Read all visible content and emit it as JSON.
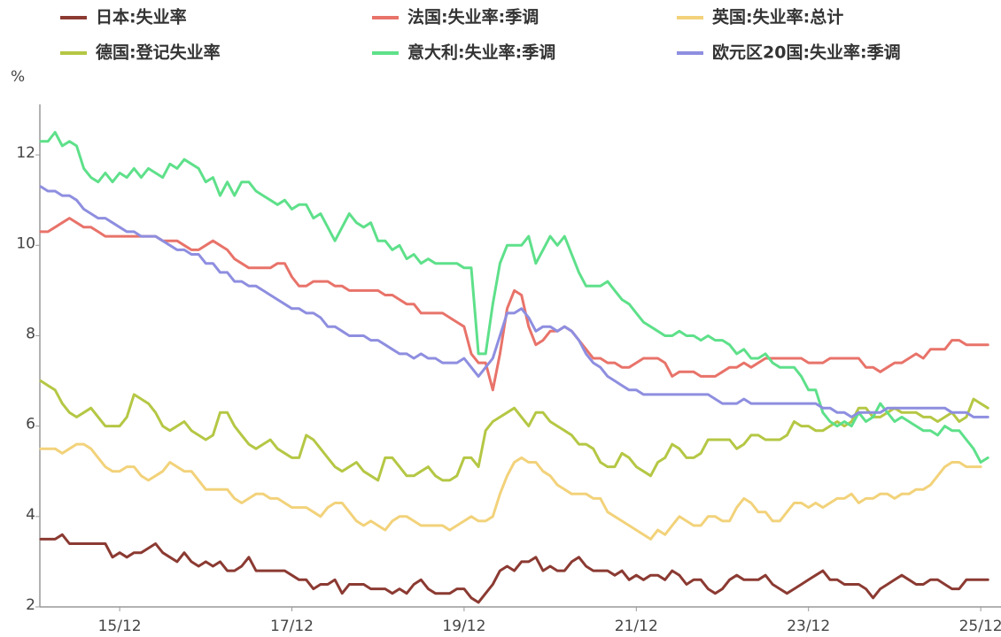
{
  "chart_data": {
    "type": "line",
    "y_label": "%",
    "categories": [
      null,
      null,
      null,
      null,
      null,
      null,
      null,
      null,
      null,
      null,
      null,
      "15/12",
      null,
      null,
      null,
      null,
      null,
      null,
      null,
      null,
      null,
      null,
      null,
      null,
      null,
      null,
      null,
      null,
      null,
      null,
      null,
      null,
      null,
      null,
      null,
      "17/12",
      null,
      null,
      null,
      null,
      null,
      null,
      null,
      null,
      null,
      null,
      null,
      null,
      null,
      null,
      null,
      null,
      null,
      null,
      null,
      null,
      null,
      null,
      null,
      "19/12",
      null,
      null,
      null,
      null,
      null,
      null,
      null,
      null,
      null,
      null,
      null,
      null,
      null,
      null,
      null,
      null,
      null,
      null,
      null,
      null,
      null,
      null,
      null,
      "21/12",
      null,
      null,
      null,
      null,
      null,
      null,
      null,
      null,
      null,
      null,
      null,
      null,
      null,
      null,
      null,
      null,
      null,
      null,
      null,
      null,
      null,
      null,
      null,
      "23/12",
      null,
      null,
      null,
      null,
      null,
      null,
      null,
      null,
      null,
      null,
      null,
      null,
      null,
      null,
      null,
      null,
      null,
      null,
      null,
      null,
      null,
      null,
      null,
      "25/12",
      null
    ],
    "ylim": [
      2,
      13
    ],
    "yticks": [
      2,
      4,
      6,
      8,
      10,
      12
    ],
    "series": [
      {
        "name": "日本:失业率",
        "color": "#8b3a32",
        "values": [
          3.5,
          3.5,
          3.5,
          3.6,
          3.4,
          3.4,
          3.4,
          3.4,
          3.4,
          3.4,
          3.1,
          3.2,
          3.1,
          3.2,
          3.2,
          3.3,
          3.4,
          3.2,
          3.1,
          3.0,
          3.2,
          3.0,
          2.9,
          3.0,
          2.9,
          3.0,
          2.8,
          2.8,
          2.9,
          3.1,
          2.8,
          2.8,
          2.8,
          2.8,
          2.8,
          2.7,
          2.6,
          2.6,
          2.4,
          2.5,
          2.5,
          2.6,
          2.3,
          2.5,
          2.5,
          2.5,
          2.4,
          2.4,
          2.4,
          2.3,
          2.4,
          2.3,
          2.5,
          2.6,
          2.4,
          2.3,
          2.3,
          2.3,
          2.4,
          2.4,
          2.2,
          2.1,
          2.3,
          2.5,
          2.8,
          2.9,
          2.8,
          3.0,
          3.0,
          3.1,
          2.8,
          2.9,
          2.8,
          2.8,
          3.0,
          3.1,
          2.9,
          2.8,
          2.8,
          2.8,
          2.7,
          2.8,
          2.6,
          2.7,
          2.6,
          2.7,
          2.7,
          2.6,
          2.8,
          2.7,
          2.5,
          2.6,
          2.6,
          2.4,
          2.3,
          2.4,
          2.6,
          2.7,
          2.6,
          2.6,
          2.6,
          2.7,
          2.5,
          2.4,
          2.3,
          2.4,
          2.5,
          2.6,
          2.7,
          2.8,
          2.6,
          2.6,
          2.5,
          2.5,
          2.5,
          2.4,
          2.2,
          2.4,
          2.5,
          2.6,
          2.7,
          2.6,
          2.5,
          2.5,
          2.6,
          2.6,
          2.5,
          2.4,
          2.4,
          2.6,
          2.6,
          2.6,
          2.6
        ]
      },
      {
        "name": "法国:失业率:季调",
        "color": "#e8736a",
        "values": [
          10.3,
          10.3,
          10.4,
          10.5,
          10.6,
          10.5,
          10.4,
          10.4,
          10.3,
          10.2,
          10.2,
          10.2,
          10.2,
          10.2,
          10.2,
          10.2,
          10.2,
          10.1,
          10.1,
          10.1,
          10.0,
          9.9,
          9.9,
          10.0,
          10.1,
          10.0,
          9.9,
          9.7,
          9.6,
          9.5,
          9.5,
          9.5,
          9.5,
          9.6,
          9.6,
          9.3,
          9.1,
          9.1,
          9.2,
          9.2,
          9.2,
          9.1,
          9.1,
          9.0,
          9.0,
          9.0,
          9.0,
          9.0,
          8.9,
          8.9,
          8.8,
          8.7,
          8.7,
          8.5,
          8.5,
          8.5,
          8.5,
          8.4,
          8.3,
          8.2,
          7.6,
          7.4,
          7.4,
          6.8,
          7.6,
          8.6,
          9.0,
          8.9,
          8.2,
          7.8,
          7.9,
          8.1,
          8.1,
          8.2,
          8.1,
          7.9,
          7.7,
          7.5,
          7.5,
          7.4,
          7.4,
          7.3,
          7.3,
          7.4,
          7.5,
          7.5,
          7.5,
          7.4,
          7.1,
          7.2,
          7.2,
          7.2,
          7.1,
          7.1,
          7.1,
          7.2,
          7.3,
          7.3,
          7.4,
          7.3,
          7.4,
          7.5,
          7.5,
          7.5,
          7.5,
          7.5,
          7.5,
          7.4,
          7.4,
          7.4,
          7.5,
          7.5,
          7.5,
          7.5,
          7.5,
          7.3,
          7.3,
          7.2,
          7.3,
          7.4,
          7.4,
          7.5,
          7.6,
          7.5,
          7.7,
          7.7,
          7.7,
          7.9,
          7.9,
          7.8,
          7.8,
          7.8,
          7.8
        ]
      },
      {
        "name": "英国:失业率:总计",
        "color": "#f2d27a",
        "values": [
          5.5,
          5.5,
          5.5,
          5.4,
          5.5,
          5.6,
          5.6,
          5.5,
          5.3,
          5.1,
          5.0,
          5.0,
          5.1,
          5.1,
          4.9,
          4.8,
          4.9,
          5.0,
          5.2,
          5.1,
          5.0,
          5.0,
          4.8,
          4.6,
          4.6,
          4.6,
          4.6,
          4.4,
          4.3,
          4.4,
          4.5,
          4.5,
          4.4,
          4.4,
          4.3,
          4.2,
          4.2,
          4.2,
          4.1,
          4.0,
          4.2,
          4.3,
          4.3,
          4.1,
          3.9,
          3.8,
          3.9,
          3.8,
          3.7,
          3.9,
          4.0,
          4.0,
          3.9,
          3.8,
          3.8,
          3.8,
          3.8,
          3.7,
          3.8,
          3.9,
          4.0,
          3.9,
          3.9,
          4.0,
          4.5,
          4.9,
          5.2,
          5.3,
          5.2,
          5.2,
          5.0,
          4.9,
          4.7,
          4.6,
          4.5,
          4.5,
          4.5,
          4.4,
          4.4,
          4.1,
          4.0,
          3.9,
          3.8,
          3.7,
          3.6,
          3.5,
          3.7,
          3.6,
          3.8,
          4.0,
          3.9,
          3.8,
          3.8,
          4.0,
          4.0,
          3.9,
          3.9,
          4.2,
          4.4,
          4.3,
          4.1,
          4.1,
          3.9,
          3.9,
          4.1,
          4.3,
          4.3,
          4.2,
          4.3,
          4.2,
          4.3,
          4.4,
          4.4,
          4.5,
          4.3,
          4.4,
          4.4,
          4.5,
          4.5,
          4.4,
          4.5,
          4.5,
          4.6,
          4.6,
          4.7,
          4.9,
          5.1,
          5.2,
          5.2,
          5.1,
          5.1,
          5.1,
          null
        ]
      },
      {
        "name": "德国:登记失业率",
        "color": "#b5c744",
        "values": [
          7.0,
          6.9,
          6.8,
          6.5,
          6.3,
          6.2,
          6.3,
          6.4,
          6.2,
          6.0,
          6.0,
          6.0,
          6.2,
          6.7,
          6.6,
          6.5,
          6.3,
          6.0,
          5.9,
          6.0,
          6.1,
          5.9,
          5.8,
          5.7,
          5.8,
          6.3,
          6.3,
          6.0,
          5.8,
          5.6,
          5.5,
          5.6,
          5.7,
          5.5,
          5.4,
          5.3,
          5.3,
          5.8,
          5.7,
          5.5,
          5.3,
          5.1,
          5.0,
          5.1,
          5.2,
          5.0,
          4.9,
          4.8,
          5.3,
          5.3,
          5.1,
          4.9,
          4.9,
          5.0,
          5.1,
          4.9,
          4.8,
          4.8,
          4.9,
          5.3,
          5.3,
          5.1,
          5.9,
          6.1,
          6.2,
          6.3,
          6.4,
          6.2,
          6.0,
          6.3,
          6.3,
          6.1,
          6.0,
          5.9,
          5.8,
          5.6,
          5.6,
          5.5,
          5.2,
          5.1,
          5.1,
          5.4,
          5.3,
          5.1,
          5.0,
          4.9,
          5.2,
          5.3,
          5.6,
          5.5,
          5.3,
          5.3,
          5.4,
          5.7,
          5.7,
          5.7,
          5.7,
          5.5,
          5.6,
          5.8,
          5.8,
          5.7,
          5.7,
          5.7,
          5.8,
          6.1,
          6.0,
          6.0,
          5.9,
          5.9,
          6.0,
          6.1,
          6.0,
          6.1,
          6.4,
          6.4,
          6.2,
          6.2,
          6.3,
          6.4,
          6.3,
          6.3,
          6.3,
          6.2,
          6.2,
          6.1,
          6.2,
          6.3,
          6.1,
          6.2,
          6.6,
          6.5,
          6.4
        ]
      },
      {
        "name": "意大利:失业率:季调",
        "color": "#5ee08a",
        "values": [
          12.3,
          12.3,
          12.5,
          12.2,
          12.3,
          12.2,
          11.7,
          11.5,
          11.4,
          11.6,
          11.4,
          11.6,
          11.5,
          11.7,
          11.5,
          11.7,
          11.6,
          11.5,
          11.8,
          11.7,
          11.9,
          11.8,
          11.7,
          11.4,
          11.5,
          11.1,
          11.4,
          11.1,
          11.4,
          11.4,
          11.2,
          11.1,
          11.0,
          10.9,
          11.0,
          10.8,
          10.9,
          10.9,
          10.6,
          10.7,
          10.4,
          10.1,
          10.4,
          10.7,
          10.5,
          10.4,
          10.5,
          10.1,
          10.1,
          9.9,
          10.0,
          9.7,
          9.8,
          9.6,
          9.7,
          9.6,
          9.6,
          9.6,
          9.6,
          9.5,
          9.5,
          7.6,
          7.6,
          8.7,
          9.6,
          10.0,
          10.0,
          10.0,
          10.2,
          9.6,
          9.9,
          10.2,
          10.0,
          10.2,
          9.8,
          9.4,
          9.1,
          9.1,
          9.1,
          9.2,
          9.0,
          8.8,
          8.7,
          8.5,
          8.3,
          8.2,
          8.1,
          8.0,
          8.0,
          8.1,
          8.0,
          8.0,
          7.9,
          8.0,
          7.9,
          7.9,
          7.8,
          7.6,
          7.7,
          7.5,
          7.5,
          7.6,
          7.4,
          7.3,
          7.3,
          7.3,
          7.1,
          6.8,
          6.8,
          6.3,
          6.1,
          6.0,
          6.1,
          6.0,
          6.3,
          6.1,
          6.2,
          6.5,
          6.3,
          6.1,
          6.2,
          6.1,
          6.0,
          5.9,
          5.9,
          5.8,
          6.0,
          5.9,
          5.9,
          5.7,
          5.5,
          5.2,
          5.3
        ]
      },
      {
        "name": "欧元区20国:失业率:季调",
        "color": "#8e8ee0",
        "values": [
          11.3,
          11.2,
          11.2,
          11.1,
          11.1,
          11.0,
          10.8,
          10.7,
          10.6,
          10.6,
          10.5,
          10.4,
          10.3,
          10.3,
          10.2,
          10.2,
          10.2,
          10.1,
          10.0,
          9.9,
          9.9,
          9.8,
          9.8,
          9.6,
          9.6,
          9.4,
          9.4,
          9.2,
          9.2,
          9.1,
          9.1,
          9.0,
          8.9,
          8.8,
          8.7,
          8.6,
          8.6,
          8.5,
          8.5,
          8.4,
          8.2,
          8.2,
          8.1,
          8.0,
          8.0,
          8.0,
          7.9,
          7.9,
          7.8,
          7.7,
          7.6,
          7.6,
          7.5,
          7.6,
          7.5,
          7.5,
          7.4,
          7.4,
          7.4,
          7.5,
          7.3,
          7.1,
          7.3,
          7.5,
          8.0,
          8.5,
          8.5,
          8.6,
          8.4,
          8.1,
          8.2,
          8.2,
          8.1,
          8.2,
          8.1,
          7.9,
          7.6,
          7.4,
          7.3,
          7.1,
          7.0,
          6.9,
          6.8,
          6.8,
          6.7,
          6.7,
          6.7,
          6.7,
          6.7,
          6.7,
          6.7,
          6.7,
          6.7,
          6.7,
          6.6,
          6.5,
          6.5,
          6.5,
          6.6,
          6.5,
          6.5,
          6.5,
          6.5,
          6.5,
          6.5,
          6.5,
          6.5,
          6.5,
          6.5,
          6.4,
          6.4,
          6.3,
          6.3,
          6.2,
          6.3,
          6.3,
          6.3,
          6.3,
          6.4,
          6.4,
          6.4,
          6.4,
          6.4,
          6.4,
          6.4,
          6.4,
          6.4,
          6.3,
          6.3,
          6.3,
          6.2,
          6.2,
          6.2
        ]
      }
    ]
  }
}
